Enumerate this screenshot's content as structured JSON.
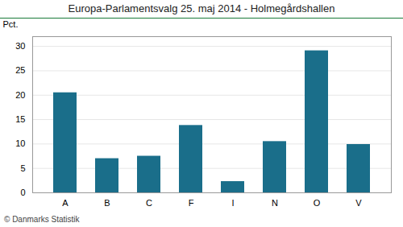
{
  "chart_data": {
    "type": "bar",
    "title": "Europa-Parlamentsvalg 25. maj 2014 - Holmegårdshallen",
    "categories": [
      "A",
      "B",
      "C",
      "F",
      "I",
      "N",
      "O",
      "V"
    ],
    "values": [
      20.5,
      7.0,
      7.5,
      13.8,
      2.3,
      10.5,
      29.1,
      9.9
    ],
    "color": "#1a6e8a",
    "ylabel": "Pct.",
    "ylim": [
      0,
      32
    ],
    "yticks": [
      0,
      5,
      10,
      15,
      20,
      25,
      30
    ],
    "grid": true,
    "footer": "© Danmarks Statistik"
  }
}
